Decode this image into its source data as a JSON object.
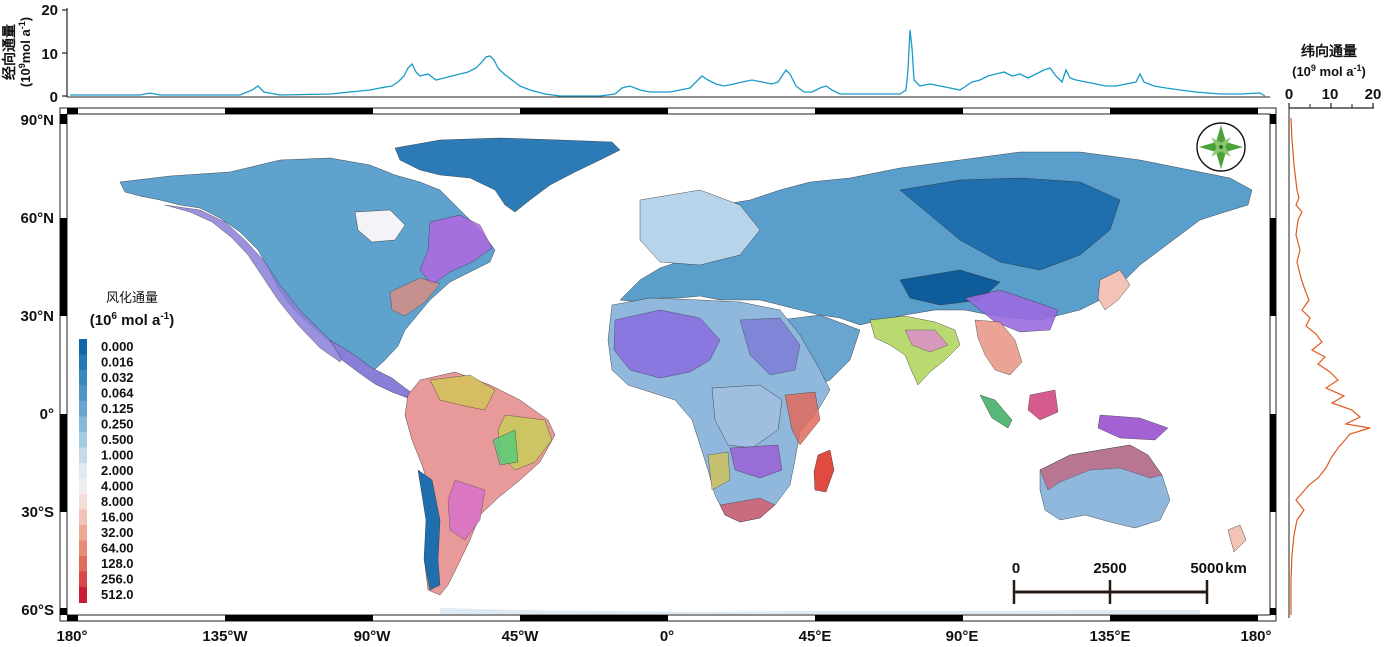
{
  "top_panel": {
    "ylabel_line1": "经向通量",
    "ylabel_line2_pre": "(10",
    "ylabel_line2_sup": "9",
    "ylabel_line2_post": "mol a",
    "ylabel_line2_sup2": "-1",
    "ylabel_line2_end": ")",
    "yticks": [
      "20",
      "10",
      "0"
    ],
    "line_color": "#1a9ac9"
  },
  "right_panel": {
    "title_line1": "纬向通量",
    "title_line2_pre": "(10",
    "title_line2_sup": "9",
    "title_line2_post": " mol a",
    "title_line2_sup2": "-1",
    "title_line2_end": ")",
    "xticks": [
      "0",
      "10",
      "20"
    ],
    "line_color": "#e05a20"
  },
  "map": {
    "lat_labels": [
      "90°N",
      "60°N",
      "30°N",
      "0°",
      "30°S",
      "60°S"
    ],
    "lon_labels": [
      "180°",
      "135°W",
      "90°W",
      "45°W",
      "0°",
      "45°E",
      "90°E",
      "135°E",
      "180°"
    ],
    "ocean_color": "#ffffff",
    "land_base_color": "#5b9cc9"
  },
  "legend": {
    "title": "风化通量",
    "unit_pre": "(10",
    "unit_sup": "6",
    "unit_post": " mol a",
    "unit_sup2": "-1",
    "unit_end": ")",
    "classes": [
      {
        "label": "0.000",
        "color": "#0e67a8"
      },
      {
        "label": "0.016",
        "color": "#2478b3"
      },
      {
        "label": "0.032",
        "color": "#3887bd"
      },
      {
        "label": "0.064",
        "color": "#4f96c6"
      },
      {
        "label": "0.125",
        "color": "#69a6cf"
      },
      {
        "label": "0.250",
        "color": "#86b8d9"
      },
      {
        "label": "0.500",
        "color": "#a5cae3"
      },
      {
        "label": "1.000",
        "color": "#c3dbec"
      },
      {
        "label": "2.000",
        "color": "#dfeaf3"
      },
      {
        "label": "4.000",
        "color": "#f3eeee"
      },
      {
        "label": "8.000",
        "color": "#f6dcd6"
      },
      {
        "label": "16.00",
        "color": "#f3c3b7"
      },
      {
        "label": "32.00",
        "color": "#eea896"
      },
      {
        "label": "64.00",
        "color": "#e88b78"
      },
      {
        "label": "128.0",
        "color": "#e06b5c"
      },
      {
        "label": "256.0",
        "color": "#d84747"
      },
      {
        "label": "512.0",
        "color": "#c81b34"
      }
    ]
  },
  "scale_bar": {
    "labels": [
      "0",
      "2500",
      "5000"
    ],
    "unit": "km"
  },
  "compass": {
    "icon": "compass-rose-icon",
    "color": "#4da13a"
  }
}
